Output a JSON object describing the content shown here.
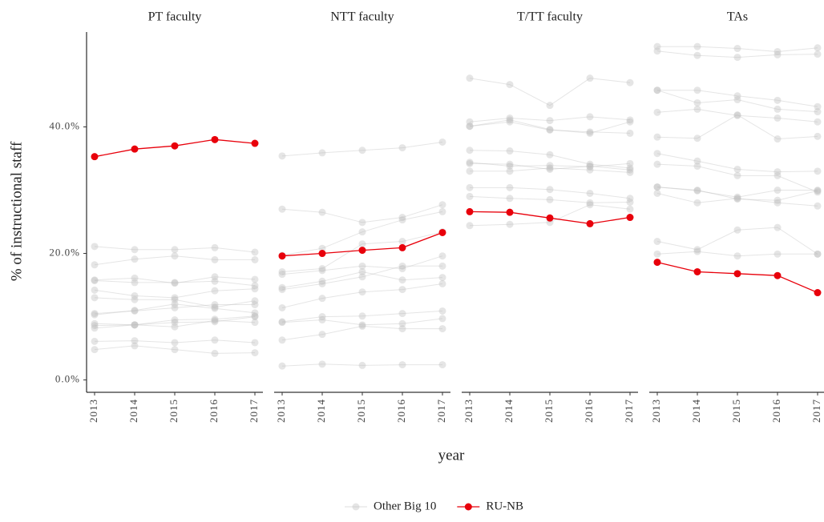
{
  "chart_data": [
    {
      "type": "line",
      "title": "PT faculty",
      "y_label": "% of instructional staff",
      "x_label": "year",
      "x": [
        2013,
        2014,
        2015,
        2016,
        2017
      ],
      "xlim": [
        2012.8,
        2017.2
      ],
      "xticks": [
        2013,
        2014,
        2015,
        2016,
        2017
      ],
      "ylim": [
        -1.7,
        55
      ],
      "yticks": [
        {
          "value": 0,
          "label": "0.0%"
        },
        {
          "value": 20,
          "label": "20.0%"
        },
        {
          "value": 40,
          "label": "40.0%"
        }
      ],
      "series": [
        {
          "name": "Other Big 10",
          "color": "#bdbdbd",
          "values": [
            21.1,
            20.6,
            20.6,
            20.9,
            20.2
          ]
        },
        {
          "name": "Other Big 10",
          "color": "#bdbdbd",
          "values": [
            18.2,
            19.1,
            19.6,
            19.0,
            19.0
          ]
        },
        {
          "name": "Other Big 10",
          "color": "#bdbdbd",
          "values": [
            15.8,
            16.1,
            15.3,
            16.3,
            15.9
          ]
        },
        {
          "name": "Other Big 10",
          "color": "#bdbdbd",
          "values": [
            15.7,
            15.4,
            15.4,
            15.6,
            14.9
          ]
        },
        {
          "name": "Other Big 10",
          "color": "#bdbdbd",
          "values": [
            14.2,
            13.3,
            13.0,
            14.1,
            14.4
          ]
        },
        {
          "name": "Other Big 10",
          "color": "#bdbdbd",
          "values": [
            13.0,
            12.7,
            12.7,
            11.5,
            12.5
          ]
        },
        {
          "name": "Other Big 10",
          "color": "#bdbdbd",
          "values": [
            10.5,
            10.9,
            11.4,
            11.9,
            11.9
          ]
        },
        {
          "name": "Other Big 10",
          "color": "#bdbdbd",
          "values": [
            10.3,
            11.0,
            12.0,
            11.3,
            10.6
          ]
        },
        {
          "name": "Other Big 10",
          "color": "#bdbdbd",
          "values": [
            8.9,
            8.7,
            9.5,
            9.6,
            10.1
          ]
        },
        {
          "name": "Other Big 10",
          "color": "#bdbdbd",
          "values": [
            8.6,
            8.7,
            9.1,
            9.2,
            10.0
          ]
        },
        {
          "name": "Other Big 10",
          "color": "#bdbdbd",
          "values": [
            8.2,
            8.7,
            8.4,
            9.4,
            9.1
          ]
        },
        {
          "name": "Other Big 10",
          "color": "#bdbdbd",
          "values": [
            6.1,
            6.2,
            5.9,
            6.3,
            5.9
          ]
        },
        {
          "name": "Other Big 10",
          "color": "#bdbdbd",
          "values": [
            4.8,
            5.4,
            4.8,
            4.2,
            4.3
          ]
        },
        {
          "name": "RU-NB",
          "color": "#e8000b",
          "values": [
            35.3,
            36.5,
            37.0,
            38.0,
            37.4
          ]
        }
      ]
    },
    {
      "type": "line",
      "title": "NTT faculty",
      "x": [
        2013,
        2014,
        2015,
        2016,
        2017
      ],
      "xlim": [
        2012.8,
        2017.2
      ],
      "xticks": [
        2013,
        2014,
        2015,
        2016,
        2017
      ],
      "ylim": [
        -1.7,
        55
      ],
      "series": [
        {
          "name": "Other Big 10",
          "color": "#bdbdbd",
          "values": [
            35.4,
            35.9,
            36.3,
            36.7,
            37.6
          ]
        },
        {
          "name": "Other Big 10",
          "color": "#bdbdbd",
          "values": [
            27.0,
            26.5,
            24.9,
            25.7,
            27.7
          ]
        },
        {
          "name": "Other Big 10",
          "color": "#bdbdbd",
          "values": [
            19.7,
            20.8,
            23.4,
            25.3,
            26.6
          ]
        },
        {
          "name": "Other Big 10",
          "color": "#bdbdbd",
          "values": [
            17.1,
            17.6,
            21.5,
            21.9,
            23.4
          ]
        },
        {
          "name": "Other Big 10",
          "color": "#bdbdbd",
          "values": [
            16.7,
            17.3,
            18.0,
            17.6,
            19.6
          ]
        },
        {
          "name": "Other Big 10",
          "color": "#bdbdbd",
          "values": [
            14.3,
            15.2,
            16.3,
            18.0,
            18.0
          ]
        },
        {
          "name": "Other Big 10",
          "color": "#bdbdbd",
          "values": [
            14.6,
            15.6,
            17.1,
            15.8,
            16.2
          ]
        },
        {
          "name": "Other Big 10",
          "color": "#bdbdbd",
          "values": [
            11.4,
            12.9,
            13.9,
            14.3,
            15.2
          ]
        },
        {
          "name": "Other Big 10",
          "color": "#bdbdbd",
          "values": [
            9.2,
            10.0,
            10.1,
            10.5,
            10.9
          ]
        },
        {
          "name": "Other Big 10",
          "color": "#bdbdbd",
          "values": [
            9.1,
            9.5,
            8.7,
            8.9,
            9.7
          ]
        },
        {
          "name": "Other Big 10",
          "color": "#bdbdbd",
          "values": [
            6.3,
            7.2,
            8.5,
            8.1,
            8.1
          ]
        },
        {
          "name": "Other Big 10",
          "color": "#bdbdbd",
          "values": [
            2.2,
            2.5,
            2.3,
            2.4,
            2.4
          ]
        },
        {
          "name": "RU-NB",
          "color": "#e8000b",
          "values": [
            19.6,
            20.0,
            20.5,
            20.9,
            23.3
          ]
        }
      ]
    },
    {
      "type": "line",
      "title": "T/TT faculty",
      "x": [
        2013,
        2014,
        2015,
        2016,
        2017
      ],
      "xlim": [
        2012.8,
        2017.2
      ],
      "xticks": [
        2013,
        2014,
        2015,
        2016,
        2017
      ],
      "ylim": [
        -1.7,
        55
      ],
      "series": [
        {
          "name": "Other Big 10",
          "color": "#bdbdbd",
          "values": [
            47.7,
            46.7,
            43.4,
            47.7,
            47.0
          ]
        },
        {
          "name": "Other Big 10",
          "color": "#bdbdbd",
          "values": [
            40.8,
            41.4,
            41.0,
            41.6,
            41.1
          ]
        },
        {
          "name": "Other Big 10",
          "color": "#bdbdbd",
          "values": [
            40.1,
            41.1,
            39.6,
            39.0,
            40.8
          ]
        },
        {
          "name": "Other Big 10",
          "color": "#bdbdbd",
          "values": [
            40.1,
            40.8,
            39.5,
            39.2,
            39.0
          ]
        },
        {
          "name": "Other Big 10",
          "color": "#bdbdbd",
          "values": [
            36.3,
            36.2,
            35.6,
            34.1,
            33.5
          ]
        },
        {
          "name": "Other Big 10",
          "color": "#bdbdbd",
          "values": [
            34.4,
            33.8,
            33.9,
            33.7,
            34.2
          ]
        },
        {
          "name": "Other Big 10",
          "color": "#bdbdbd",
          "values": [
            34.2,
            34.1,
            33.3,
            33.8,
            33.2
          ]
        },
        {
          "name": "Other Big 10",
          "color": "#bdbdbd",
          "values": [
            33.0,
            33.0,
            33.5,
            33.2,
            32.8
          ]
        },
        {
          "name": "Other Big 10",
          "color": "#bdbdbd",
          "values": [
            30.4,
            30.4,
            30.1,
            29.5,
            28.7
          ]
        },
        {
          "name": "Other Big 10",
          "color": "#bdbdbd",
          "values": [
            29.0,
            28.7,
            28.5,
            28.0,
            28.1
          ]
        },
        {
          "name": "Other Big 10",
          "color": "#bdbdbd",
          "values": [
            24.4,
            24.6,
            24.9,
            27.7,
            27.0
          ]
        },
        {
          "name": "RU-NB",
          "color": "#e8000b",
          "values": [
            26.6,
            26.5,
            25.6,
            24.7,
            25.7
          ]
        }
      ]
    },
    {
      "type": "line",
      "title": "TAs",
      "x": [
        2013,
        2014,
        2015,
        2016,
        2017
      ],
      "xlim": [
        2012.8,
        2017.2
      ],
      "xticks": [
        2013,
        2014,
        2015,
        2016,
        2017
      ],
      "ylim": [
        -1.7,
        55
      ],
      "series": [
        {
          "name": "Other Big 10",
          "color": "#bdbdbd",
          "values": [
            52.7,
            52.7,
            52.4,
            51.9,
            52.5
          ]
        },
        {
          "name": "Other Big 10",
          "color": "#bdbdbd",
          "values": [
            52.0,
            51.3,
            51.0,
            51.4,
            51.5
          ]
        },
        {
          "name": "Other Big 10",
          "color": "#bdbdbd",
          "values": [
            45.8,
            45.8,
            44.9,
            44.2,
            43.2
          ]
        },
        {
          "name": "Other Big 10",
          "color": "#bdbdbd",
          "values": [
            45.8,
            43.8,
            44.3,
            42.8,
            42.4
          ]
        },
        {
          "name": "Other Big 10",
          "color": "#bdbdbd",
          "values": [
            42.3,
            42.8,
            41.8,
            41.4,
            40.8
          ]
        },
        {
          "name": "Other Big 10",
          "color": "#bdbdbd",
          "values": [
            38.4,
            38.2,
            41.9,
            38.1,
            38.5
          ]
        },
        {
          "name": "Other Big 10",
          "color": "#bdbdbd",
          "values": [
            35.8,
            34.6,
            33.3,
            32.9,
            33.0
          ]
        },
        {
          "name": "Other Big 10",
          "color": "#bdbdbd",
          "values": [
            34.1,
            33.8,
            32.3,
            32.3,
            29.7
          ]
        },
        {
          "name": "Other Big 10",
          "color": "#bdbdbd",
          "values": [
            30.5,
            30.0,
            28.6,
            28.4,
            29.9
          ]
        },
        {
          "name": "Other Big 10",
          "color": "#bdbdbd",
          "values": [
            30.5,
            29.9,
            28.9,
            30.0,
            30.0
          ]
        },
        {
          "name": "Other Big 10",
          "color": "#bdbdbd",
          "values": [
            29.5,
            28.0,
            28.7,
            28.0,
            27.5
          ]
        },
        {
          "name": "Other Big 10",
          "color": "#bdbdbd",
          "values": [
            21.9,
            20.6,
            23.7,
            24.1,
            19.9
          ]
        },
        {
          "name": "Other Big 10",
          "color": "#bdbdbd",
          "values": [
            19.9,
            20.3,
            19.6,
            19.9,
            19.9
          ]
        },
        {
          "name": "RU-NB",
          "color": "#e8000b",
          "values": [
            18.6,
            17.1,
            16.8,
            16.5,
            13.8
          ]
        }
      ]
    }
  ]
}
